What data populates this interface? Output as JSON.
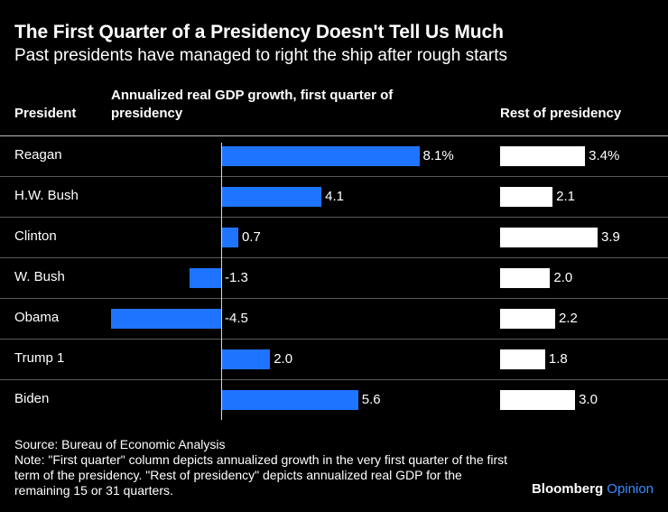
{
  "title": "The First Quarter of a Presidency Doesn't Tell Us Much",
  "subtitle": "Past presidents have managed to right the ship after rough starts",
  "headers": {
    "president": "President",
    "first_quarter": "Annualized real GDP growth, first quarter of presidency",
    "rest": "Rest of presidency"
  },
  "chart_data": {
    "type": "bar",
    "categories": [
      "Reagan",
      "H.W. Bush",
      "Clinton",
      "W. Bush",
      "Obama",
      "Trump 1",
      "Biden"
    ],
    "series": [
      {
        "name": "Annualized real GDP growth, first quarter of presidency",
        "values": [
          8.1,
          4.1,
          0.7,
          -1.3,
          -4.5,
          2.0,
          5.6
        ],
        "labels": [
          "8.1%",
          "4.1",
          "0.7",
          "-1.3",
          "-4.5",
          "2.0",
          "5.6"
        ],
        "color": "#1f74ff"
      },
      {
        "name": "Rest of presidency",
        "values": [
          3.4,
          2.1,
          3.9,
          2.0,
          2.2,
          1.8,
          3.0
        ],
        "labels": [
          "3.4%",
          "2.1",
          "3.9",
          "2.0",
          "2.2",
          "1.8",
          "3.0"
        ],
        "color": "#ffffff"
      }
    ]
  },
  "source": "Source: Bureau of Economic Analysis",
  "note": "Note: \"First quarter\" column depicts annualized growth in the very first quarter of the first term of the presidency. \"Rest of presidency\" depicts annualized real GDP for the remaining 15 or 31 quarters.",
  "brand": {
    "name": "Bloomberg",
    "product": "Opinion"
  },
  "colors": {
    "background": "#000000",
    "first_bar": "#1f74ff",
    "rest_bar": "#ffffff",
    "brand_accent": "#3a8bff"
  }
}
